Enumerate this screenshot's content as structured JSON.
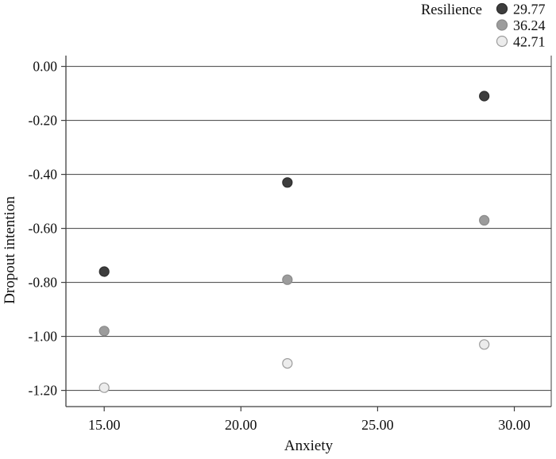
{
  "chart_data": {
    "type": "scatter",
    "title": "",
    "xlabel": "Anxiety",
    "ylabel": "Dropout intention",
    "xlim": [
      13.6,
      31.35
    ],
    "ylim": [
      -1.26,
      0.04
    ],
    "grid": "horizontal",
    "xticks": [
      {
        "value": 15,
        "label": "15.00"
      },
      {
        "value": 20,
        "label": "20.00"
      },
      {
        "value": 25,
        "label": "25.00"
      },
      {
        "value": 30,
        "label": "30.00"
      }
    ],
    "yticks": [
      {
        "value": 0.0,
        "label": "0.00"
      },
      {
        "value": -0.2,
        "label": "-0.20"
      },
      {
        "value": -0.4,
        "label": "-0.40"
      },
      {
        "value": -0.6,
        "label": "-0.60"
      },
      {
        "value": -0.8,
        "label": "-0.80"
      },
      {
        "value": -1.0,
        "label": "-1.00"
      },
      {
        "value": -1.2,
        "label": "-1.20"
      }
    ],
    "legend": {
      "title": "Resilience",
      "position": "top-right",
      "entries": [
        {
          "label": "29.77",
          "marker_fill": "#3d3d3d",
          "marker_stroke": "#2e2e2e"
        },
        {
          "label": "36.24",
          "marker_fill": "#9c9c9c",
          "marker_stroke": "#8a8a8a"
        },
        {
          "label": "42.71",
          "marker_fill": "#ececec",
          "marker_stroke": "#9c9c9c"
        }
      ]
    },
    "series": [
      {
        "name": "29.77",
        "marker_fill": "#3d3d3d",
        "marker_stroke": "#2e2e2e",
        "points": [
          {
            "x": 15.0,
            "y": -0.76
          },
          {
            "x": 21.7,
            "y": -0.43
          },
          {
            "x": 28.9,
            "y": -0.11
          }
        ]
      },
      {
        "name": "36.24",
        "marker_fill": "#9c9c9c",
        "marker_stroke": "#8a8a8a",
        "points": [
          {
            "x": 15.0,
            "y": -0.98
          },
          {
            "x": 21.7,
            "y": -0.79
          },
          {
            "x": 28.9,
            "y": -0.57
          }
        ]
      },
      {
        "name": "42.71",
        "marker_fill": "#ececec",
        "marker_stroke": "#9c9c9c",
        "points": [
          {
            "x": 15.0,
            "y": -1.19
          },
          {
            "x": 21.7,
            "y": -1.1
          },
          {
            "x": 28.9,
            "y": -1.03
          }
        ]
      }
    ],
    "colors": {
      "grid": "#3f3f3f",
      "axis": "#3f3f3f",
      "text": "#0f0f0f",
      "background": "#ffffff"
    }
  }
}
